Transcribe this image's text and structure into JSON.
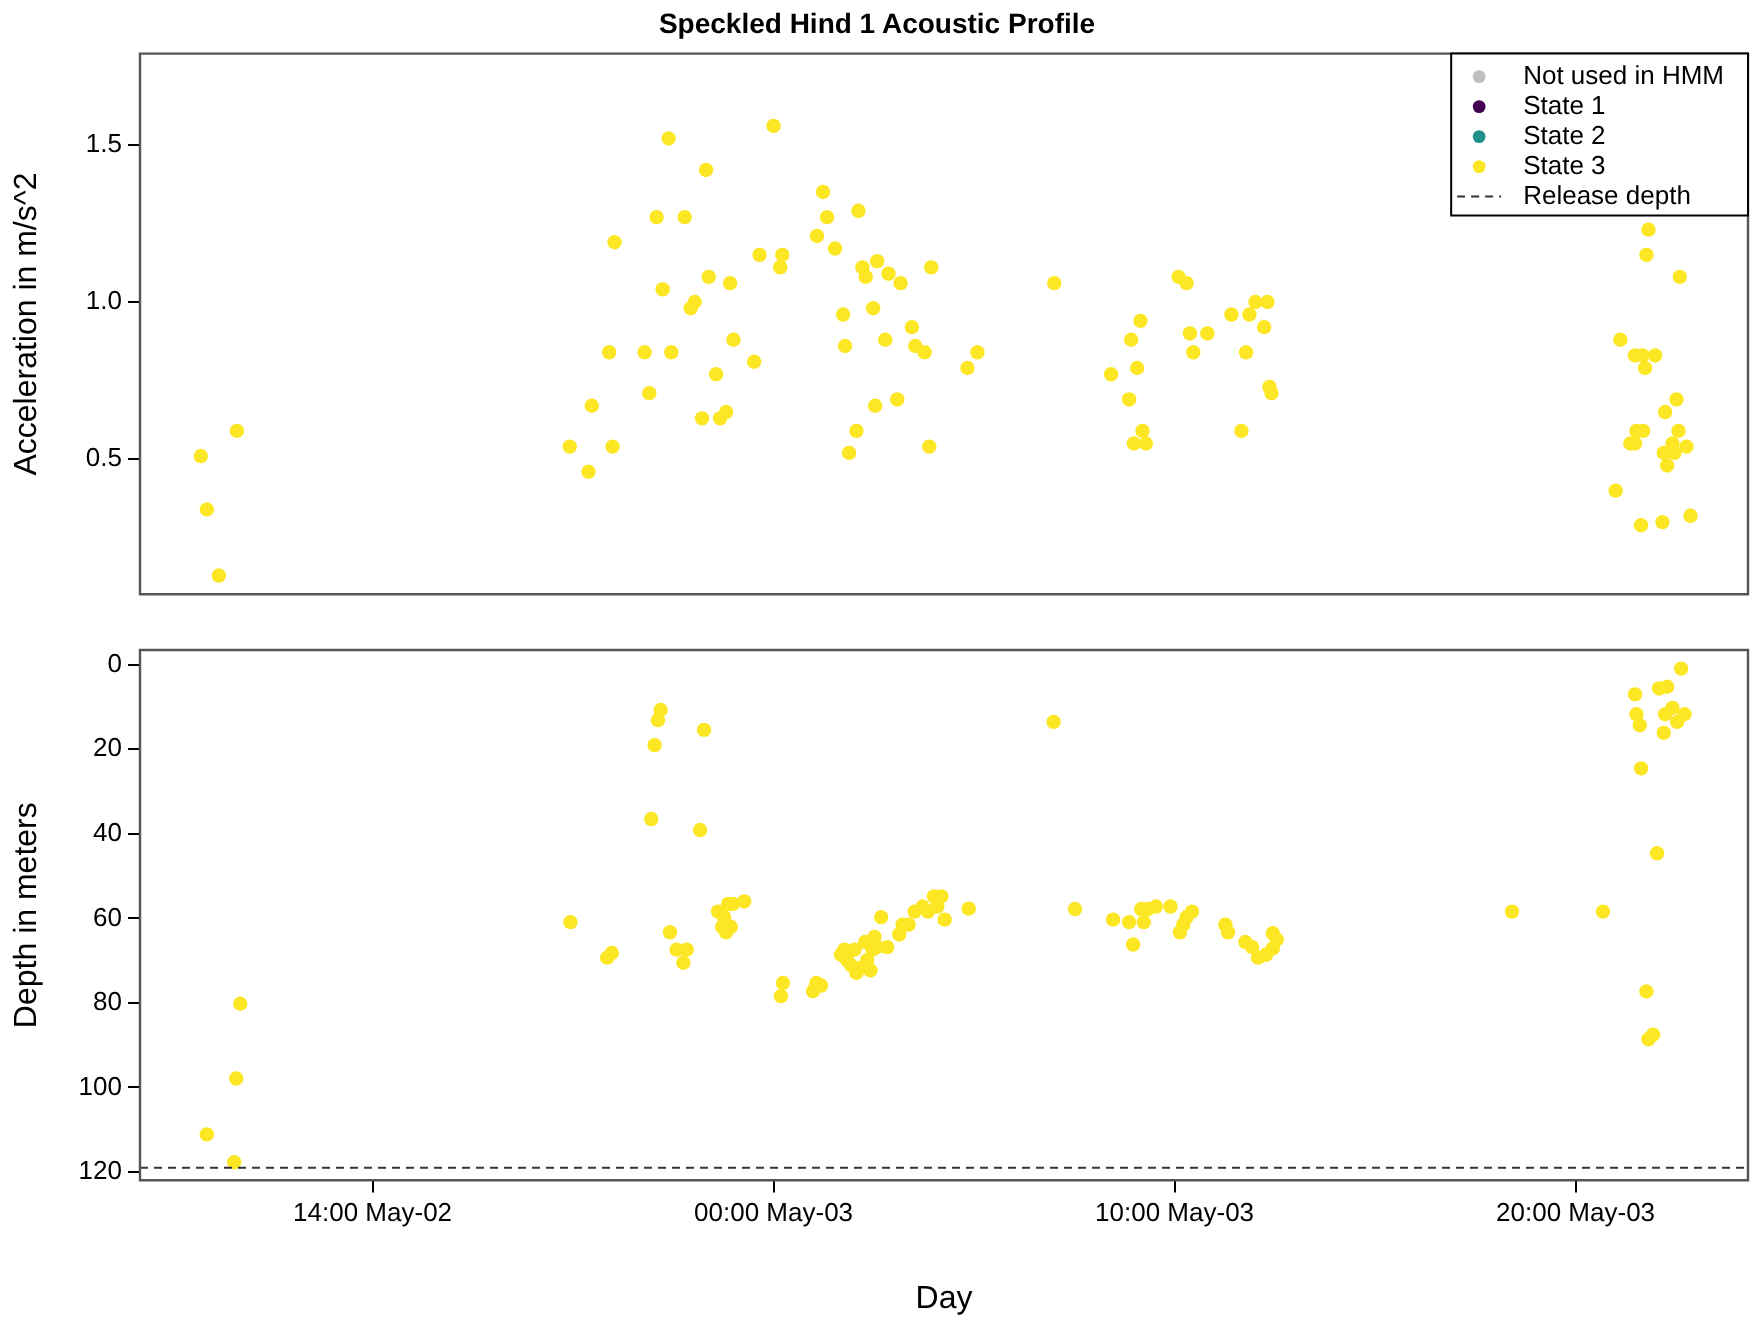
{
  "chart_data": [
    {
      "type": "scatter",
      "title": "Speckled Hind 1 Acoustic Profile",
      "ylabel": "Acceleration in m/s^2",
      "xlim": [
        "--05-02T08:12",
        "--05-04T00:18"
      ],
      "ylim": [
        0.07,
        1.79
      ],
      "yticks": [
        0.5,
        {
          "value": 1,
          "label": "1.0"
        },
        1.5
      ],
      "tick_labels": "y",
      "grid": false,
      "legend": "top right",
      "marker": "circle",
      "series": [
        {
          "name": "Not used in HMM",
          "color": "#bebebe"
        },
        {
          "name": "State 1",
          "color": "#440154"
        },
        {
          "name": "State 2",
          "color": "#21908c"
        },
        {
          "name": "State 3",
          "color": "#fde725",
          "x": [
            "--05-02T09:43",
            "--05-02T09:52",
            "--05-02T10:10",
            "--05-02T10:37",
            "--05-02T18:55",
            "--05-02T19:23",
            "--05-02T19:28",
            "--05-02T19:59",
            "--05-02T19:54",
            "--05-02T20:02",
            "--05-02T20:47",
            "--05-02T20:54",
            "--05-02T21:05",
            "--05-02T21:14",
            "--05-02T21:23",
            "--05-02T21:27",
            "--05-02T21:47",
            "--05-02T21:56",
            "--05-02T22:02",
            "--05-02T22:13",
            "--05-02T22:19",
            "--05-02T22:23",
            "--05-02T22:34",
            "--05-02T22:40",
            "--05-02T22:49",
            "--05-02T22:55",
            "--05-02T23:00",
            "--05-02T23:31",
            "--05-02T23:39",
            "--05-03T00:00",
            "--05-03T00:10",
            "--05-03T00:13",
            "--05-03T01:05",
            "--05-03T01:14",
            "--05-03T01:20",
            "--05-03T01:32",
            "--05-03T01:44",
            "--05-03T01:47",
            "--05-03T01:53",
            "--05-03T02:04",
            "--05-03T02:07",
            "--05-03T02:13",
            "--05-03T02:18",
            "--05-03T02:29",
            "--05-03T02:32",
            "--05-03T02:35",
            "--05-03T02:47",
            "--05-03T02:52",
            "--05-03T03:05",
            "--05-03T03:10",
            "--05-03T03:27",
            "--05-03T03:32",
            "--05-03T03:46",
            "--05-03T03:53",
            "--05-03T03:56",
            "--05-03T04:50",
            "--05-03T05:05",
            "--05-03T07:00",
            "--05-03T08:25",
            "--05-03T08:52",
            "--05-03T08:55",
            "--05-03T08:59",
            "--05-03T09:04",
            "--05-03T09:09",
            "--05-03T09:12",
            "--05-03T09:17",
            "--05-03T10:06",
            "--05-03T10:18",
            "--05-03T10:23",
            "--05-03T10:28",
            "--05-03T10:49",
            "--05-03T11:25",
            "--05-03T11:40",
            "--05-03T11:47",
            "--05-03T11:52",
            "--05-03T12:01",
            "--05-03T12:14",
            "--05-03T12:19",
            "--05-03T12:22",
            "--05-03T12:25",
            "--05-03T21:49",
            "--05-03T21:46",
            "--05-03T22:36",
            "--05-03T21:07",
            "--05-03T21:29",
            "--05-03T21:40",
            "--05-03T21:59",
            "--05-03T21:44",
            "--05-03T22:31",
            "--05-03T22:14",
            "--05-03T21:31",
            "--05-03T21:41",
            "--05-03T22:34",
            "--05-03T21:22",
            "--05-03T21:29",
            "--05-03T22:25",
            "--05-03T22:12",
            "--05-03T22:28",
            "--05-03T22:46",
            "--05-03T22:17",
            "--05-03T21:00",
            "--05-03T22:52",
            "--05-03T22:10",
            "--05-03T21:38"
          ],
          "values": [
            0.51,
            0.34,
            0.13,
            0.59,
            0.54,
            0.46,
            0.67,
            0.54,
            0.84,
            1.19,
            0.84,
            0.71,
            1.27,
            1.04,
            1.52,
            0.84,
            1.27,
            0.98,
            1.0,
            0.63,
            1.42,
            1.08,
            0.77,
            0.63,
            0.65,
            1.06,
            0.88,
            0.81,
            1.15,
            1.56,
            1.11,
            1.15,
            1.21,
            1.35,
            1.27,
            1.17,
            0.96,
            0.86,
            0.52,
            0.59,
            1.29,
            1.11,
            1.08,
            0.98,
            0.67,
            1.13,
            0.88,
            1.09,
            0.69,
            1.06,
            0.92,
            0.86,
            0.84,
            0.54,
            1.11,
            0.79,
            0.84,
            1.06,
            0.77,
            0.69,
            0.88,
            0.55,
            0.79,
            0.94,
            0.59,
            0.55,
            1.08,
            1.06,
            0.9,
            0.84,
            0.9,
            0.96,
            0.59,
            0.84,
            0.96,
            1.0,
            0.92,
            1.0,
            0.73,
            0.71,
            1.23,
            1.15,
            1.08,
            0.88,
            0.83,
            0.83,
            0.83,
            0.79,
            0.69,
            0.65,
            0.59,
            0.59,
            0.59,
            0.55,
            0.55,
            0.55,
            0.52,
            0.52,
            0.54,
            0.48,
            0.4,
            0.32,
            0.3,
            0.29
          ]
        }
      ]
    },
    {
      "type": "scatter",
      "xlabel": "Day",
      "ylabel": "Depth in meters",
      "xlim": [
        "--05-02T08:12",
        "--05-04T00:18"
      ],
      "xticks": [
        {
          "value": "--05-02T14:00",
          "label": "14:00 May-02"
        },
        {
          "value": "--05-03T00:00",
          "label": "00:00 May-03"
        },
        {
          "value": "--05-03T10:00",
          "label": "10:00 May-03"
        },
        {
          "value": "--05-03T20:00",
          "label": "20:00 May-03"
        }
      ],
      "ylim": [
        122,
        -3.5
      ],
      "yticks": [
        0,
        20,
        40,
        60,
        80,
        100,
        120
      ],
      "grid": false,
      "marker": "circle",
      "ref_lines": [
        {
          "axis": "y",
          "value": 119,
          "label": "Release depth",
          "color": "#333333",
          "line_style": "dashed"
        }
      ],
      "series": [
        {
          "color": "#fde725",
          "x": [
            "--05-02T09:52",
            "--05-02T10:33",
            "--05-02T10:36",
            "--05-02T10:42",
            "--05-02T18:56",
            "--05-02T19:51",
            "--05-02T19:58",
            "--05-02T20:57",
            "--05-02T21:02",
            "--05-02T21:07",
            "--05-02T21:11",
            "--05-02T21:25",
            "--05-02T21:35",
            "--05-02T21:45",
            "--05-02T21:50",
            "--05-02T22:10",
            "--05-02T22:16",
            "--05-02T22:37",
            "--05-02T22:43",
            "--05-02T22:46",
            "--05-02T22:49",
            "--05-02T22:52",
            "--05-02T22:56",
            "--05-02T22:59",
            "--05-02T23:16",
            "--05-03T00:11",
            "--05-03T00:14",
            "--05-03T00:59",
            "--05-03T01:04",
            "--05-03T01:11",
            "--05-03T01:41",
            "--05-03T01:46",
            "--05-03T01:50",
            "--05-03T01:56",
            "--05-03T02:01",
            "--05-03T02:04",
            "--05-03T02:11",
            "--05-03T02:17",
            "--05-03T02:20",
            "--05-03T02:25",
            "--05-03T02:28",
            "--05-03T02:31",
            "--05-03T02:35",
            "--05-03T02:41",
            "--05-03T02:50",
            "--05-03T03:08",
            "--05-03T03:13",
            "--05-03T03:22",
            "--05-03T03:31",
            "--05-03T03:43",
            "--05-03T03:51",
            "--05-03T04:00",
            "--05-03T04:05",
            "--05-03T04:11",
            "--05-03T04:16",
            "--05-03T04:52",
            "--05-03T06:59",
            "--05-03T07:31",
            "--05-03T08:28",
            "--05-03T08:52",
            "--05-03T08:58",
            "--05-03T09:10",
            "--05-03T09:14",
            "--05-03T09:20",
            "--05-03T09:32",
            "--05-03T09:54",
            "--05-03T10:08",
            "--05-03T10:13",
            "--05-03T10:18",
            "--05-03T10:26",
            "--05-03T11:16",
            "--05-03T11:20",
            "--05-03T11:46",
            "--05-03T11:56",
            "--05-03T12:05",
            "--05-03T12:17",
            "--05-03T12:27",
            "--05-03T12:33",
            "--05-03T12:27",
            "--05-03T18:25",
            "--05-03T20:41",
            "--05-03T21:29",
            "--05-03T21:31",
            "--05-03T21:36",
            "--05-03T21:38",
            "--05-03T21:46",
            "--05-03T21:49",
            "--05-03T21:56",
            "--05-03T22:02",
            "--05-03T22:05",
            "--05-03T22:17",
            "--05-03T22:12",
            "--05-03T22:14",
            "--05-03T22:25",
            "--05-03T22:32",
            "--05-03T22:43",
            "--05-03T22:38"
          ],
          "values": [
            111.1,
            117.7,
            97.9,
            80.2,
            60.9,
            69.3,
            68.2,
            36.5,
            19.0,
            13.1,
            10.7,
            63.3,
            67.4,
            70.5,
            67.4,
            39.1,
            15.4,
            58.4,
            62.0,
            59.7,
            63.3,
            56.6,
            62.0,
            56.6,
            56.0,
            78.4,
            75.3,
            77.2,
            75.3,
            75.9,
            68.6,
            67.4,
            69.9,
            71.1,
            67.4,
            72.9,
            71.7,
            65.6,
            69.9,
            72.3,
            67.4,
            64.4,
            66.8,
            59.7,
            66.8,
            63.8,
            61.5,
            61.5,
            58.4,
            57.2,
            58.4,
            54.8,
            57.2,
            54.8,
            60.3,
            57.7,
            13.5,
            57.8,
            60.3,
            60.9,
            66.2,
            57.8,
            60.9,
            57.8,
            57.2,
            57.2,
            63.3,
            61.5,
            59.7,
            58.4,
            61.5,
            63.3,
            65.6,
            66.8,
            69.3,
            68.6,
            67.1,
            65.0,
            63.5,
            58.4,
            58.4,
            7.0,
            11.7,
            14.3,
            24.5,
            77.3,
            88.6,
            87.5,
            44.6,
            5.6,
            5.2,
            16.1,
            11.7,
            10.2,
            13.5,
            11.7,
            0.9
          ]
        }
      ]
    }
  ]
}
